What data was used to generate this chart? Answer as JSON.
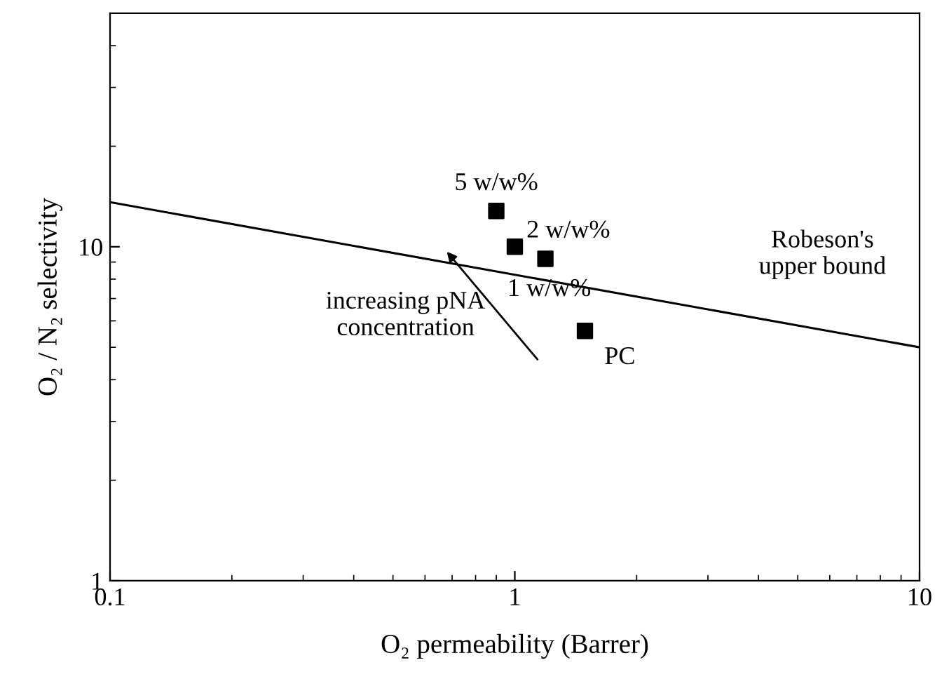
{
  "chart_data": {
    "type": "scatter",
    "xlabel": "O₂ permeability (Barrer)",
    "ylabel": "O₂ / N₂ selectivity",
    "log": "xy",
    "xlim": [
      0.1,
      10
    ],
    "ylim": [
      1,
      50
    ],
    "xticks": [
      0.1,
      1,
      10
    ],
    "yticks": [
      1,
      10
    ],
    "grid": false,
    "legend": false,
    "series": [
      {
        "color": "#000000",
        "marker": "square",
        "x": [
          0.9,
          1.0,
          1.19,
          1.49
        ],
        "values": [
          12.8,
          10.0,
          9.2,
          5.6
        ]
      },
      {
        "type": "line",
        "name": "Robeson's upper bound",
        "color": "#000000",
        "marker": "none",
        "line_style": "solid",
        "x": [
          0.1,
          10
        ],
        "values": [
          13.6,
          5.0
        ]
      }
    ],
    "annotations": [
      {
        "text": "5 w/w%",
        "x": 0.9,
        "y": 12.8
      },
      {
        "text": "2 w/w%",
        "x": 1.0,
        "y": 10.0
      },
      {
        "text": "1 w/w%",
        "x": 1.19,
        "y": 9.2
      },
      {
        "text": "PC",
        "x": 1.49,
        "y": 5.6
      },
      "increasing pNA concentration"
    ]
  }
}
